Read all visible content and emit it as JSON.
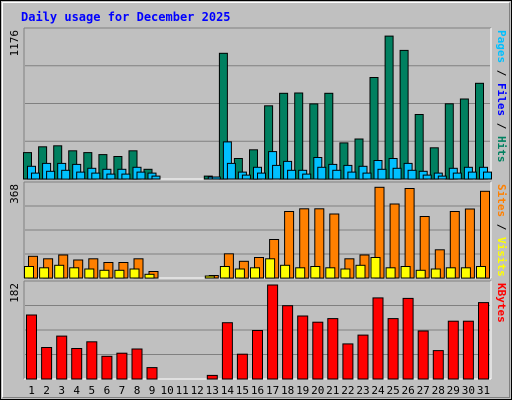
{
  "chart_data": {
    "type": "bar",
    "title": "Daily usage for December 2025",
    "categories": [
      "1",
      "2",
      "3",
      "4",
      "5",
      "6",
      "7",
      "8",
      "9",
      "10",
      "11",
      "12",
      "13",
      "14",
      "15",
      "16",
      "17",
      "18",
      "19",
      "20",
      "21",
      "22",
      "23",
      "24",
      "25",
      "26",
      "27",
      "28",
      "29",
      "30",
      "31"
    ],
    "weekend_days": [
      6,
      7,
      13,
      14,
      20,
      21,
      27,
      28
    ],
    "colors": {
      "hits": "#008060",
      "files": "#00c0ff",
      "pages": "#00c0ff",
      "visits": "#ff8000",
      "sites": "#ffff00",
      "kbytes": "#ff0000",
      "title": "#0000ff",
      "weekend_label": "#008000",
      "panel_bg": "#c0c0c0"
    },
    "panels": [
      {
        "id": "hits-files-pages",
        "max_label": "1176",
        "ylim": [
          0,
          1176
        ],
        "axis_label_parts": [
          {
            "text": "Pages",
            "color": "#00c0ff"
          },
          {
            "text": " / ",
            "color": "#000000"
          },
          {
            "text": "Files",
            "color": "#0000ff"
          },
          {
            "text": " / ",
            "color": "#000000"
          },
          {
            "text": "Hits",
            "color": "#008060"
          }
        ],
        "series": [
          {
            "name": "Hits",
            "color": "#008060",
            "values": [
              211,
              258,
              266,
              226,
              211,
              195,
              180,
              226,
              78,
              0,
              0,
              0,
              23,
              1006,
              164,
              234,
              586,
              686,
              688,
              601,
              686,
              289,
              320,
              812,
              1143,
              1029,
              516,
              250,
              602,
              640,
              766
            ]
          },
          {
            "name": "Files",
            "color": "#00c0ff",
            "values": [
              102,
              125,
              125,
              117,
              86,
              78,
              78,
              94,
              47,
              0,
              0,
              0,
              16,
              297,
              55,
              94,
              219,
              141,
              70,
              172,
              117,
              109,
              102,
              148,
              164,
              125,
              62,
              47,
              86,
              94,
              94
            ]
          },
          {
            "name": "Pages",
            "color": "#00c0ff",
            "values": [
              47,
              62,
              70,
              55,
              47,
              39,
              39,
              55,
              23,
              0,
              0,
              0,
              8,
              125,
              31,
              47,
              109,
              70,
              39,
              94,
              70,
              55,
              47,
              78,
              86,
              70,
              31,
              23,
              47,
              55,
              55
            ]
          }
        ]
      },
      {
        "id": "visits-sites",
        "max_label": "368",
        "ylim": [
          0,
          368
        ],
        "axis_label_parts": [
          {
            "text": "Sites",
            "color": "#ff8000"
          },
          {
            "text": " / ",
            "color": "#000000"
          },
          {
            "text": "Visits",
            "color": "#ffff00"
          }
        ],
        "series": [
          {
            "name": "Visits",
            "color": "#ff8000",
            "values": [
              87,
              77,
              92,
              72,
              77,
              62,
              62,
              77,
              26,
              0,
              0,
              0,
              10,
              97,
              67,
              82,
              154,
              266,
              277,
              277,
              256,
              77,
              92,
              363,
              296,
              358,
              246,
              113,
              266,
              276,
              347
            ]
          },
          {
            "name": "Sites",
            "color": "#ffff00",
            "values": [
              46,
              41,
              51,
              41,
              36,
              31,
              31,
              36,
              15,
              0,
              0,
              0,
              5,
              46,
              36,
              41,
              77,
              51,
              41,
              46,
              41,
              36,
              51,
              82,
              41,
              46,
              31,
              36,
              41,
              41,
              46
            ]
          }
        ]
      },
      {
        "id": "kbytes",
        "max_label": "182",
        "ylim": [
          0,
          182
        ],
        "axis_label_parts": [
          {
            "text": "KBytes",
            "color": "#ff0000"
          }
        ],
        "series": [
          {
            "name": "KBytes",
            "color": "#ff0000",
            "values": [
              124,
              61,
              83,
              59,
              72,
              44,
              50,
              58,
              22,
              0,
              0,
              0,
              7,
              109,
              48,
              94,
              182,
              142,
              122,
              110,
              117,
              68,
              85,
              157,
              117,
              156,
              93,
              55,
              112,
              112,
              148
            ]
          }
        ]
      }
    ]
  }
}
